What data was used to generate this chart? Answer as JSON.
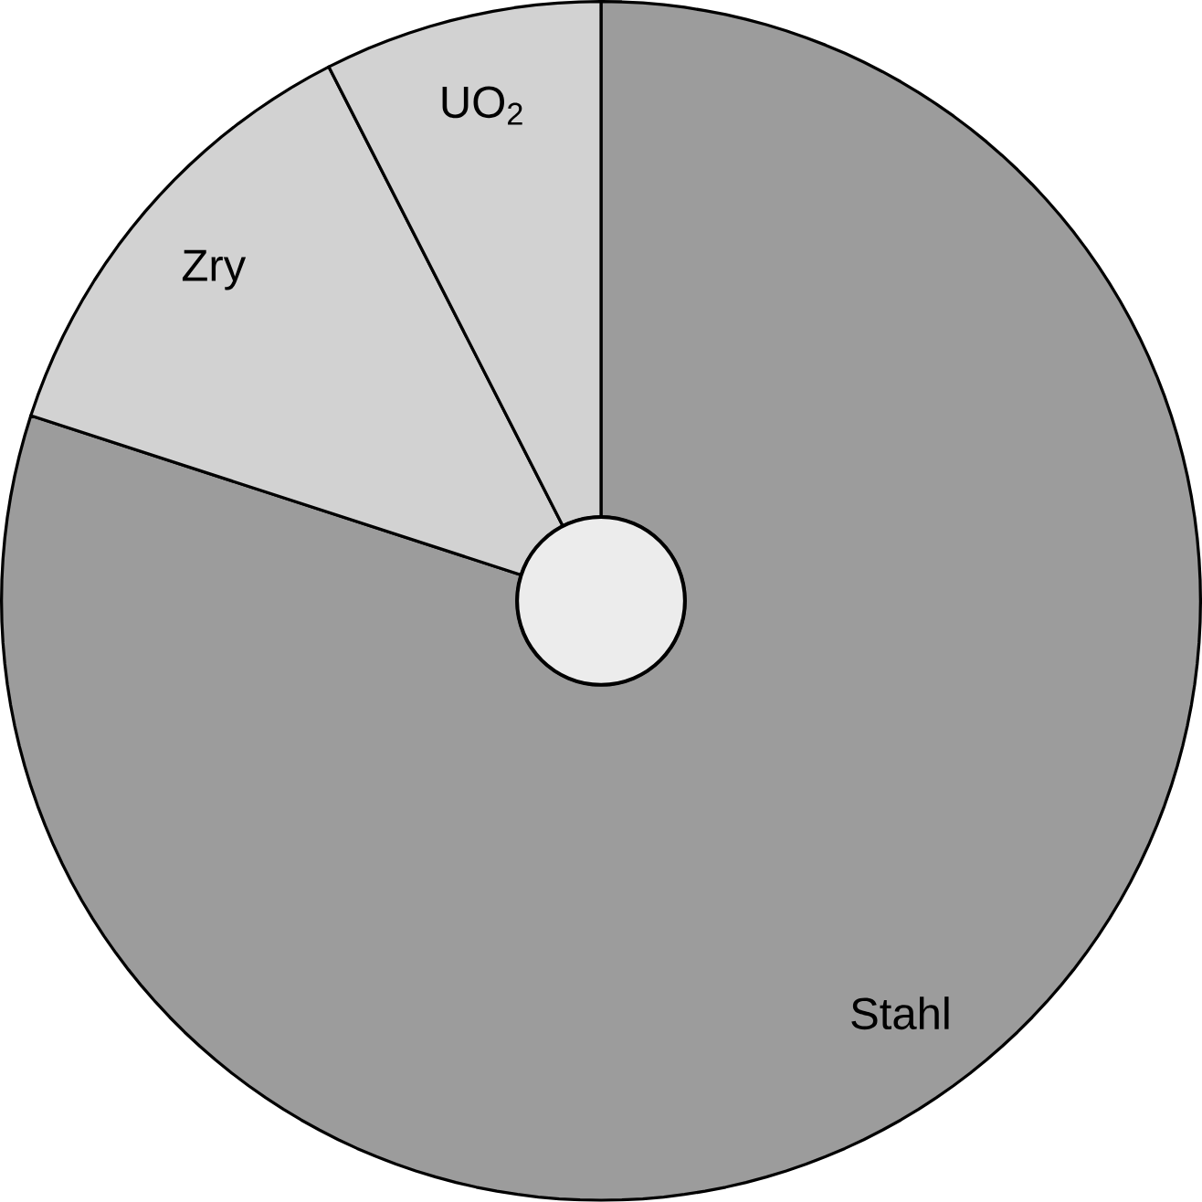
{
  "chart_data": {
    "type": "donut",
    "categories": [
      "Stahl",
      "Zry",
      "UO$_{2}$"
    ],
    "values": [
      80,
      12.5,
      7.5
    ],
    "colors": [
      "#9c9c9c",
      "#d2d2d2",
      "#d2d2d2"
    ]
  }
}
